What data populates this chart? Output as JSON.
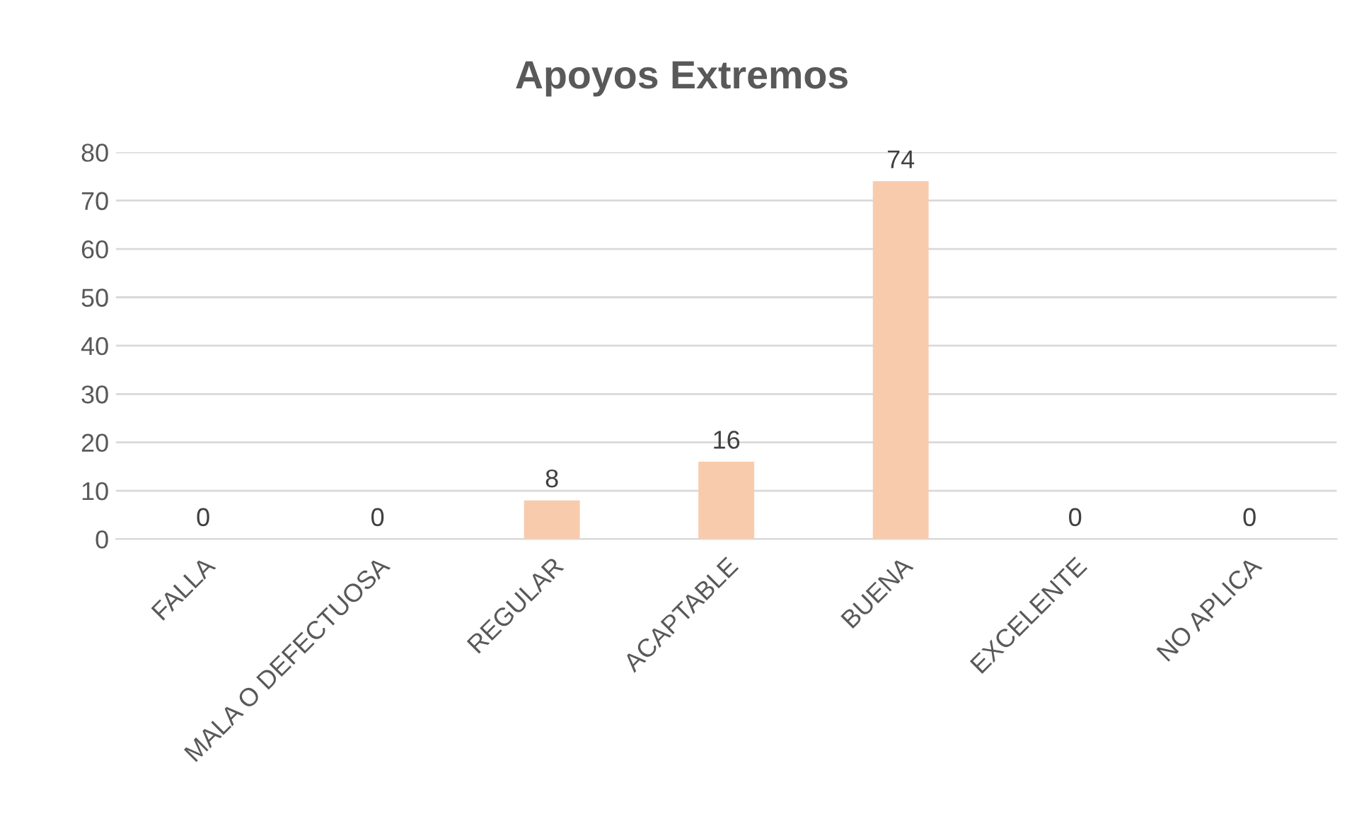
{
  "chart_data": {
    "type": "bar",
    "title": "Apoyos Extremos",
    "categories": [
      "FALLA",
      "MALA O DEFECTUOSA",
      "REGULAR",
      "ACAPTABLE",
      "BUENA",
      "EXCELENTE",
      "NO APLICA"
    ],
    "values": [
      0,
      0,
      8,
      16,
      74,
      0,
      0
    ],
    "color": "#f8cbad",
    "ylim": [
      0,
      80
    ],
    "yticks": [
      0,
      10,
      20,
      30,
      40,
      50,
      60,
      70,
      80
    ],
    "grid": "y",
    "data_labels": true
  }
}
